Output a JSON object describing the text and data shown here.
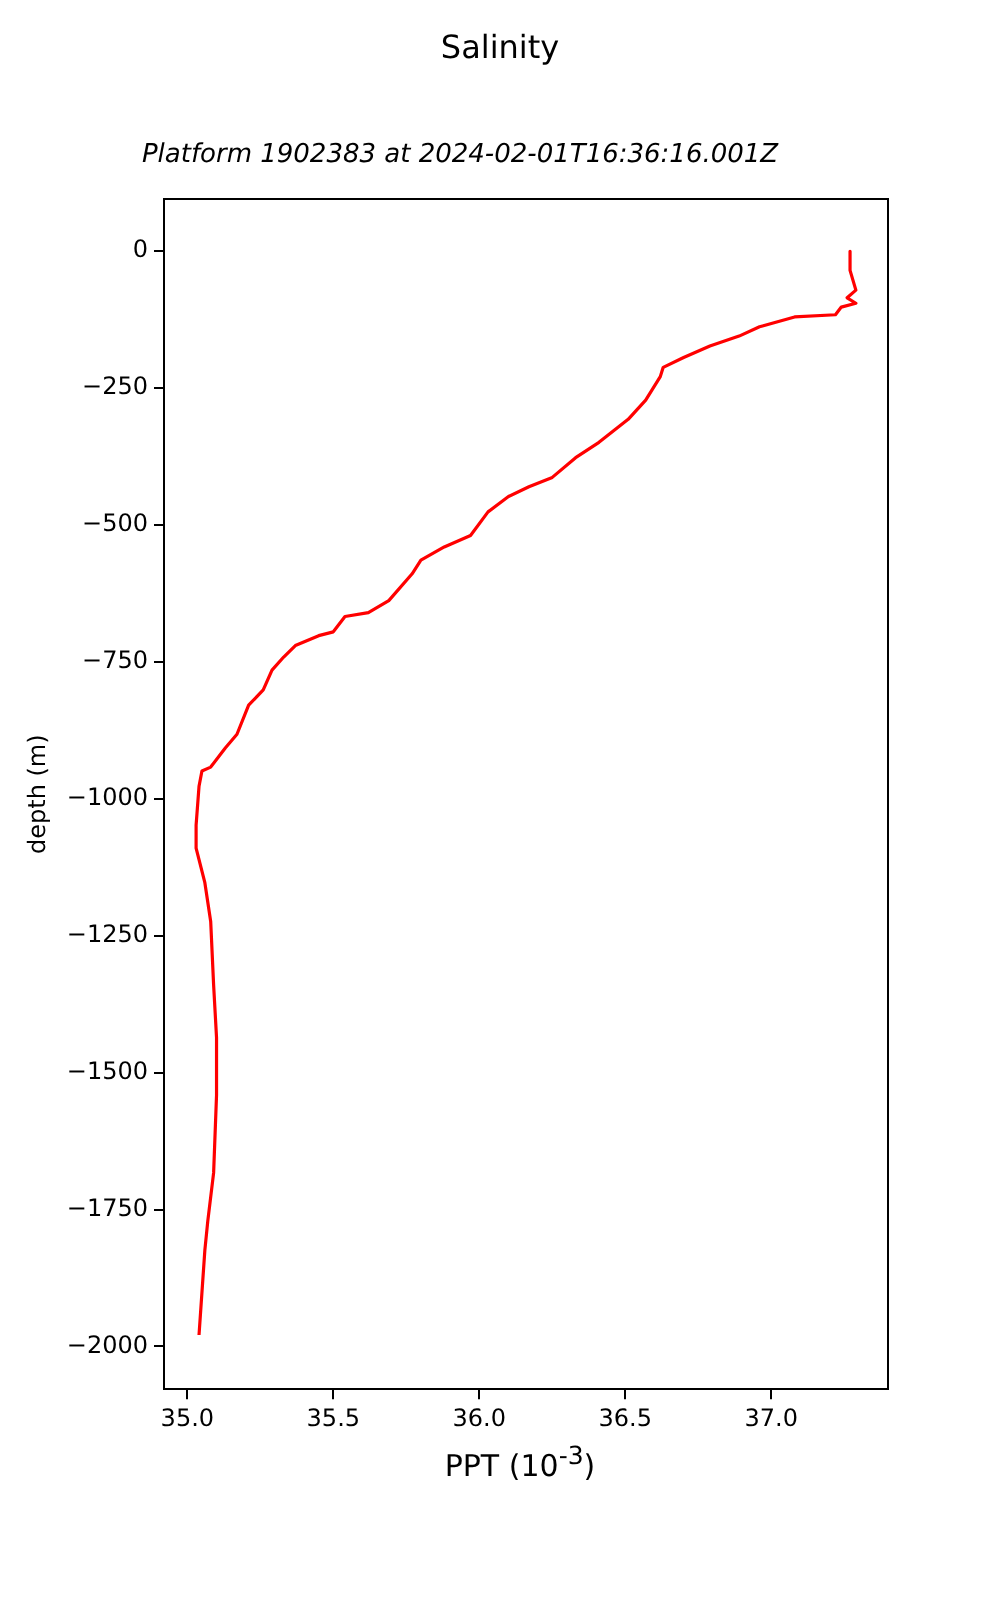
{
  "chart_data": {
    "type": "line",
    "title": "Salinity",
    "subtitle": "Platform 1902383 at 2024-02-01T16:36:16.001Z",
    "xlabel": "PPT (10$^{-3}$)",
    "ylabel": "depth (m)",
    "series": [
      {
        "color": "#ff0000",
        "x": [
          37.27,
          37.27,
          37.29,
          37.26,
          37.29,
          37.24,
          37.22,
          37.08,
          36.96,
          36.89,
          36.79,
          36.7,
          36.63,
          36.62,
          36.57,
          36.51,
          36.41,
          36.33,
          36.25,
          36.17,
          36.1,
          36.03,
          35.97,
          35.88,
          35.8,
          35.77,
          35.69,
          35.62,
          35.54,
          35.5,
          35.45,
          35.37,
          35.33,
          35.29,
          35.26,
          35.21,
          35.17,
          35.13,
          35.08,
          35.05,
          35.04,
          35.03,
          35.03,
          35.06,
          35.08,
          35.09,
          35.1,
          35.1,
          35.09,
          35.07,
          35.06,
          35.04
        ],
        "values": [
          0,
          -35,
          -71,
          -85,
          -95,
          -102,
          -116,
          -120,
          -138,
          -155,
          -173,
          -194,
          -212,
          -229,
          -272,
          -307,
          -349,
          -377,
          -413,
          -430,
          -448,
          -476,
          -519,
          -540,
          -564,
          -589,
          -638,
          -660,
          -667,
          -695,
          -702,
          -720,
          -741,
          -765,
          -801,
          -829,
          -882,
          -907,
          -942,
          -949,
          -977,
          -1048,
          -1090,
          -1153,
          -1224,
          -1340,
          -1436,
          -1541,
          -1683,
          -1771,
          -1824,
          -1979
        ]
      }
    ],
    "xlim": [
      34.92,
      37.4
    ],
    "ylim": [
      -2078,
      95
    ],
    "xticks": [
      {
        "value": 35,
        "label": "35.0"
      },
      {
        "value": 35.5,
        "label": "35.5"
      },
      {
        "value": 36,
        "label": "36.0"
      },
      {
        "value": 36.5,
        "label": "36.5"
      },
      {
        "value": 37,
        "label": "37.0"
      }
    ],
    "yticks": [
      {
        "value": 0,
        "label": "0"
      },
      {
        "value": -250,
        "label": "−250"
      },
      {
        "value": -500,
        "label": "−500"
      },
      {
        "value": -750,
        "label": "−750"
      },
      {
        "value": -1000,
        "label": "−1000"
      },
      {
        "value": -1250,
        "label": "−1250"
      },
      {
        "value": -1500,
        "label": "−1500"
      },
      {
        "value": -1750,
        "label": "−1750"
      },
      {
        "value": -2000,
        "label": "−2000"
      }
    ],
    "grid": false,
    "legend": false,
    "marker": "none",
    "line_style": "solid"
  }
}
